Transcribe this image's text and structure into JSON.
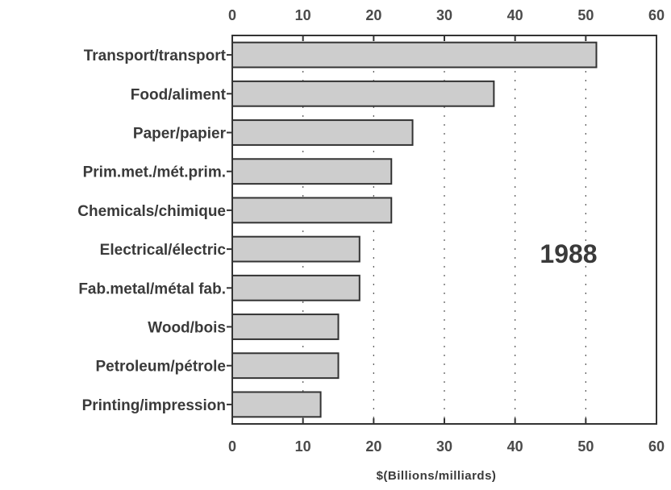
{
  "chart_data": {
    "type": "bar",
    "orientation": "horizontal",
    "categories": [
      "Transport/transport",
      "Food/aliment",
      "Paper/papier",
      "Prim.met./mét.prim.",
      "Chemicals/chimique",
      "Electrical/électric",
      "Fab.metal/métal fab.",
      "Wood/bois",
      "Petroleum/pétrole",
      "Printing/impression"
    ],
    "values": [
      51.5,
      37,
      25.5,
      22.5,
      22.5,
      18,
      18,
      15,
      15,
      12.5
    ],
    "annotation": "1988",
    "xlabel": "$(Billions/milliards)",
    "xlim": [
      0,
      60
    ],
    "xticks": [
      "0",
      "10",
      "20",
      "30",
      "40",
      "50",
      "60"
    ],
    "grid": "vertical dotted",
    "bar_color": "#cdcdcd"
  }
}
